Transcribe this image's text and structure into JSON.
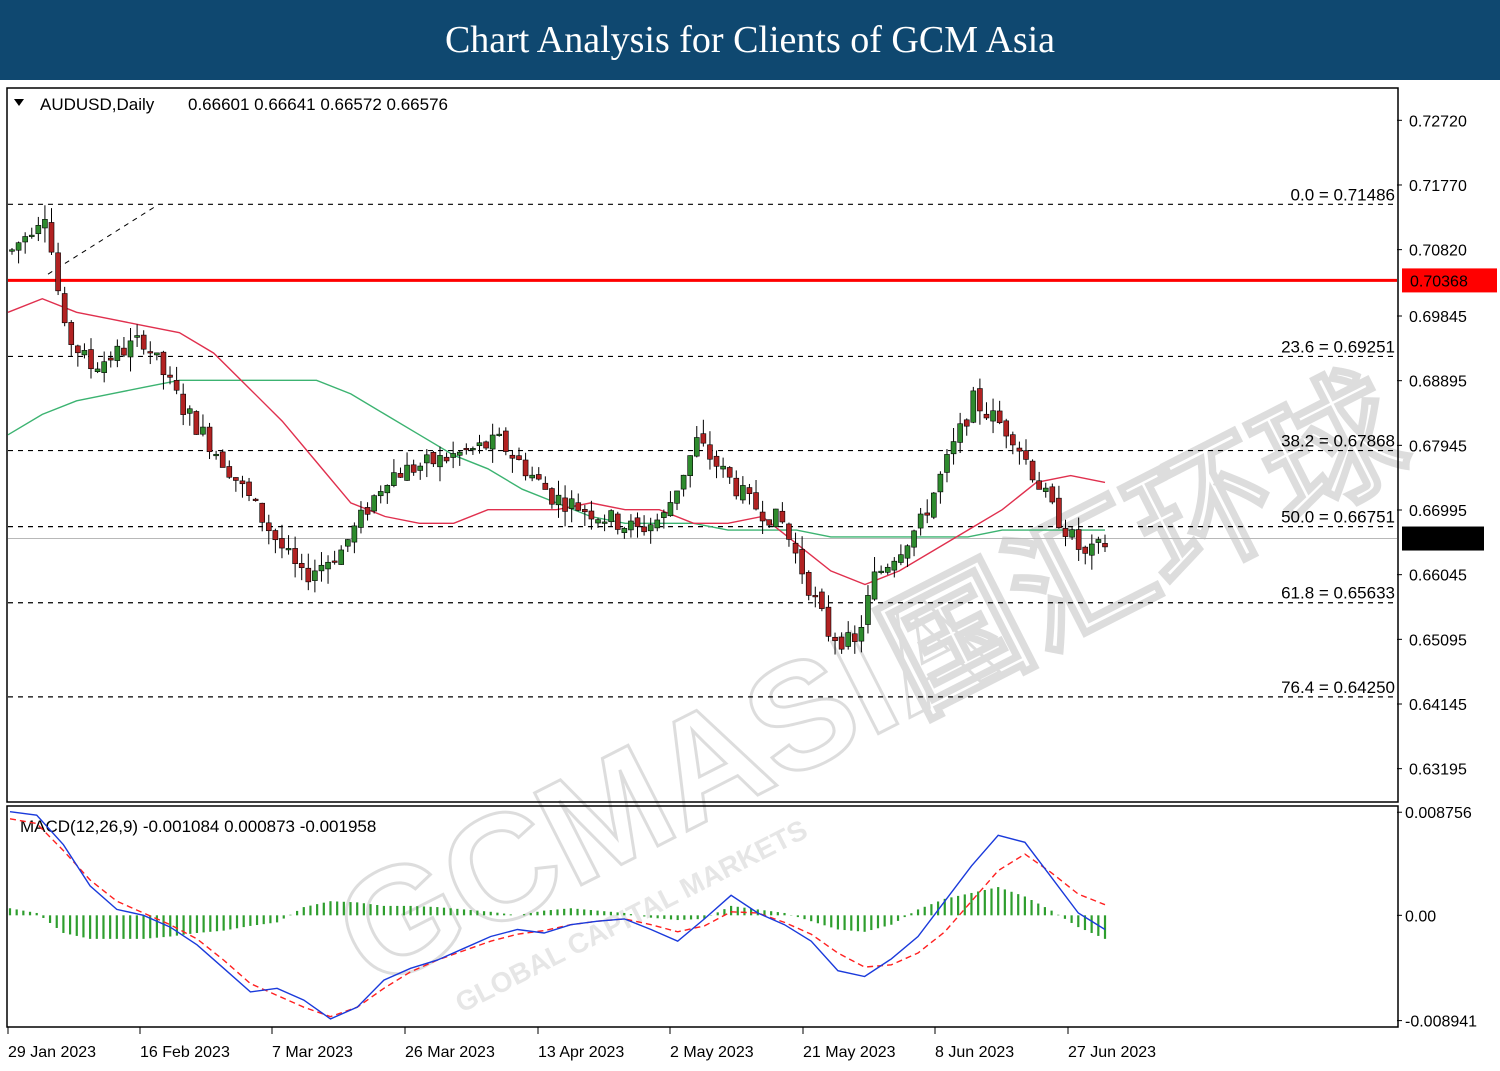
{
  "banner": {
    "title": "Chart Analysis for Clients of GCM Asia"
  },
  "watermark": {
    "text": "GCMASIA",
    "sub": "GLOBAL CAPITAL MARKETS",
    "cn": "国汇环球"
  },
  "colors": {
    "banner": "#0f4870",
    "bull": "#2e8b2e",
    "bear": "#b22222",
    "wick": "#000000",
    "ma_fast": "#e0304e",
    "ma_slow": "#3cb371",
    "resistance": "#ff0000",
    "macd_line": "#1a3adb",
    "signal": "#ff2020",
    "histogram": "#2e9e2e",
    "current_badge": "#000000"
  },
  "chart_data": [
    {
      "type": "candlestick",
      "symbol_label": "AUDUSD,Daily",
      "ohlc_label": "0.66601 0.66641 0.66572 0.66576",
      "ylim": [
        0.6272,
        0.7318
      ],
      "y_ticks": [
        "0.72720",
        "0.71770",
        "0.70820",
        "0.69845",
        "0.68895",
        "0.67945",
        "0.66995",
        "0.66045",
        "0.65095",
        "0.64145",
        "0.63195"
      ],
      "x_ticks": [
        "29 Jan 2023",
        "16 Feb 2023",
        "7 Mar 2023",
        "26 Mar 2023",
        "13 Apr 2023",
        "2 May 2023",
        "21 May 2023",
        "8 Jun 2023",
        "27 Jun 2023"
      ],
      "current_price": "0.66576",
      "resistance": {
        "value": "0.70368"
      },
      "fibonacci": [
        {
          "label": "0.0 = 0.71486",
          "value": 0.71486
        },
        {
          "label": "23.6 = 0.69251",
          "value": 0.69251
        },
        {
          "label": "38.2 = 0.67868",
          "value": 0.67868
        },
        {
          "label": "50.0 = 0.66751",
          "value": 0.66751
        },
        {
          "label": "61.8 = 0.65633",
          "value": 0.65633
        },
        {
          "label": "76.4 = 0.64250",
          "value": 0.6425
        }
      ],
      "trend_line": [
        [
          0.7046,
          0.7146
        ],
        [
          0.7144,
          0.7148
        ]
      ],
      "key_points": [
        {
          "date": "27 Jan 2023",
          "high": 0.7149
        },
        {
          "date": "7 Mar 2023",
          "low": 0.6564
        },
        {
          "date": "31 May 2023",
          "low": 0.6459
        },
        {
          "date": "16 Jun 2023",
          "high": 0.6899
        },
        {
          "date": "29 Jun 2023",
          "close": 0.6658
        }
      ],
      "ma_fast_series": [
        0.699,
        0.701,
        0.699,
        0.698,
        0.697,
        0.696,
        0.693,
        0.688,
        0.683,
        0.677,
        0.671,
        0.669,
        0.668,
        0.668,
        0.67,
        0.67,
        0.67,
        0.671,
        0.67,
        0.67,
        0.668,
        0.668,
        0.669,
        0.665,
        0.661,
        0.659,
        0.661,
        0.664,
        0.667,
        0.67,
        0.674,
        0.675,
        0.674
      ],
      "ma_slow_series": [
        0.681,
        0.684,
        0.686,
        0.687,
        0.688,
        0.689,
        0.689,
        0.689,
        0.689,
        0.689,
        0.687,
        0.684,
        0.681,
        0.678,
        0.676,
        0.673,
        0.671,
        0.669,
        0.668,
        0.668,
        0.668,
        0.667,
        0.667,
        0.667,
        0.666,
        0.666,
        0.666,
        0.666,
        0.666,
        0.667,
        0.667,
        0.667,
        0.667
      ]
    },
    {
      "type": "macd",
      "label": "MACD(12,26,9) -0.001084 0.000873 -0.001958",
      "ylim": [
        -0.0094,
        0.0092
      ],
      "y_ticks": [
        "0.008756",
        "0.00",
        "-0.008941"
      ],
      "macd_series": [
        0.0088,
        0.0085,
        0.006,
        0.0025,
        0.0005,
        0.0,
        -0.001,
        -0.0025,
        -0.0045,
        -0.0065,
        -0.0062,
        -0.0072,
        -0.0088,
        -0.0078,
        -0.0055,
        -0.0045,
        -0.0038,
        -0.0028,
        -0.0018,
        -0.0012,
        -0.0015,
        -0.0008,
        -0.0005,
        -0.0003,
        -0.0012,
        -0.0022,
        -0.0003,
        0.0017,
        0.0002,
        -0.0008,
        -0.0022,
        -0.0047,
        -0.0052,
        -0.0037,
        -0.0018,
        0.0012,
        0.0042,
        0.0068,
        0.0062,
        0.0032,
        0.0002,
        -0.0012
      ],
      "signal_series": [
        0.0082,
        0.0078,
        0.0055,
        0.003,
        0.0012,
        0.0002,
        -0.0008,
        -0.002,
        -0.0038,
        -0.0058,
        -0.0068,
        -0.0078,
        -0.0086,
        -0.0078,
        -0.0062,
        -0.0048,
        -0.0038,
        -0.003,
        -0.0022,
        -0.0016,
        -0.0013,
        -0.0008,
        -0.0005,
        -0.0003,
        -0.0008,
        -0.0014,
        -0.0009,
        0.0003,
        0.0002,
        -0.0006,
        -0.0016,
        -0.0032,
        -0.0044,
        -0.0042,
        -0.0032,
        -0.0014,
        0.0012,
        0.0038,
        0.0052,
        0.0036,
        0.0018,
        0.0009
      ],
      "histogram": [
        0.0006,
        0.0002,
        -0.0015,
        -0.002,
        -0.002,
        -0.002,
        -0.0018,
        -0.0015,
        -0.0013,
        -0.0009,
        -0.0006,
        0.0007,
        0.0012,
        0.0011,
        0.0008,
        0.0008,
        0.0007,
        0.0005,
        0.0003,
        0.0,
        0.0004,
        0.0006,
        0.0004,
        0.0002,
        -0.0002,
        -0.0004,
        -0.0003,
        0.0008,
        0.0005,
        0.0002,
        -0.0005,
        -0.0012,
        -0.0014,
        -0.0008,
        0.0005,
        0.0014,
        0.0019,
        0.0024,
        0.0016,
        0.0004,
        -0.001,
        -0.002
      ]
    }
  ]
}
